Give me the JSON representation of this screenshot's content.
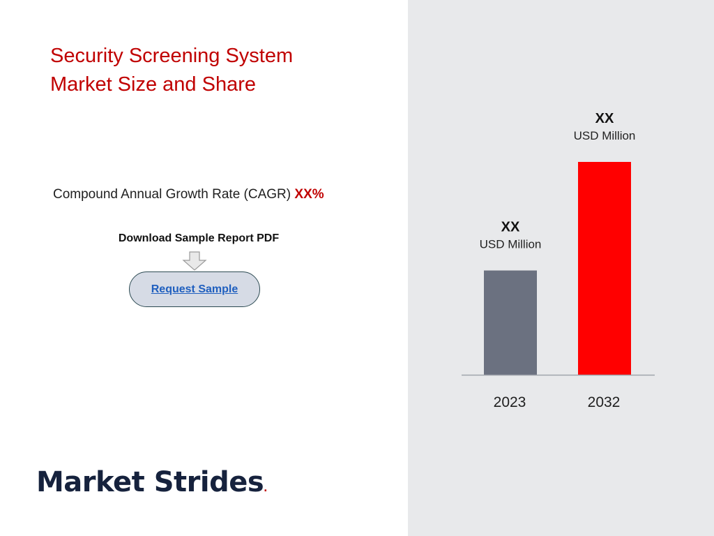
{
  "title": {
    "line1": "Security Screening System",
    "line2": "Market Size and Share"
  },
  "cagr": {
    "label": "Compound Annual Growth Rate (CAGR)",
    "value": "XX%"
  },
  "download": {
    "label": "Download Sample Report PDF",
    "button_label": "Request Sample"
  },
  "logo": {
    "text": "Market Strides",
    "dot": "."
  },
  "colors": {
    "accent": "#c00000",
    "bar_2023": "#6b7180",
    "bar_2032": "#ff0000",
    "panel": "#e8e9eb"
  },
  "chart_data": {
    "type": "bar",
    "title": "",
    "xlabel": "",
    "ylabel": "",
    "categories": [
      "2023",
      "2032"
    ],
    "values": [
      49,
      100
    ],
    "data_labels": [
      {
        "value": "XX",
        "unit": "USD Million"
      },
      {
        "value": "XX",
        "unit": "USD Million"
      }
    ],
    "ylim": [
      0,
      100
    ],
    "grid": false,
    "legend": "none"
  }
}
